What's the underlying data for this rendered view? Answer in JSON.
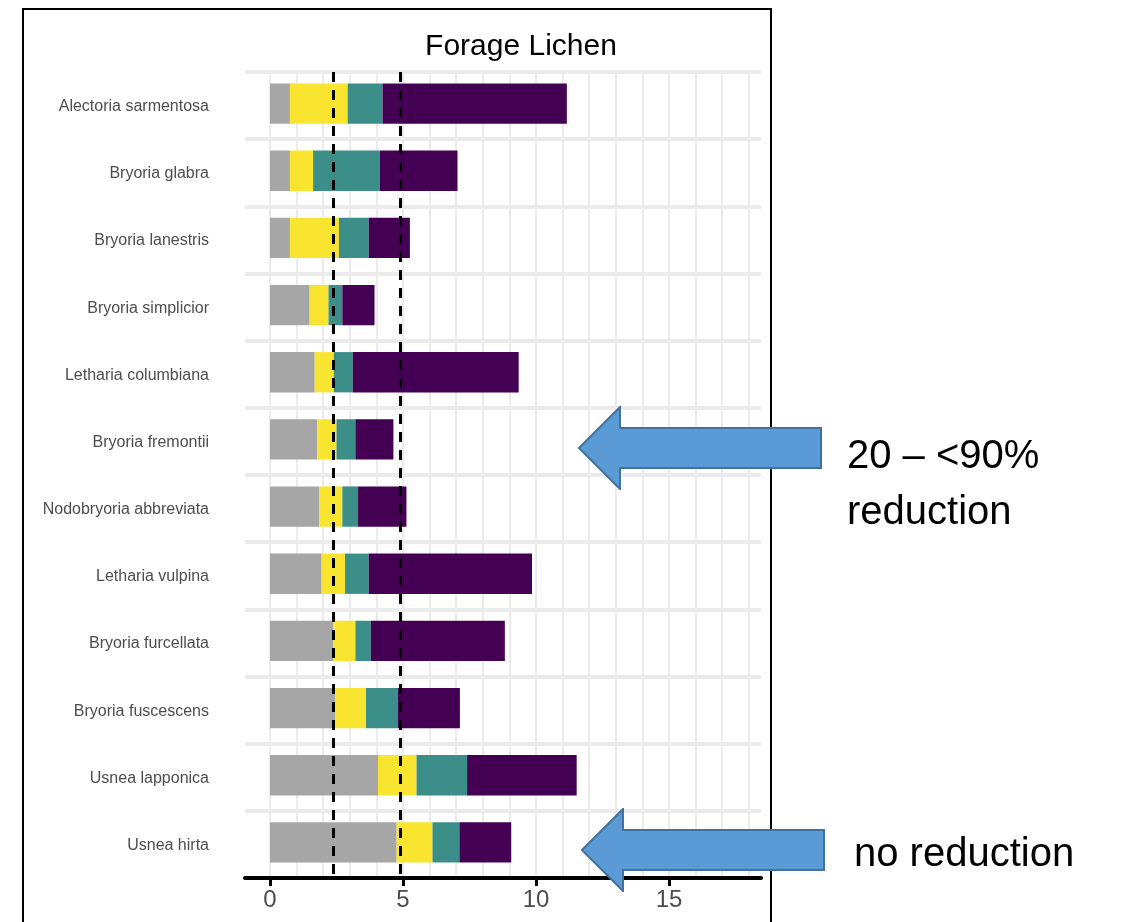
{
  "chart_data": {
    "type": "bar",
    "title": "Forage Lichen",
    "orientation": "horizontal",
    "stacked": true,
    "categories": [
      "Alectoria sarmentosa",
      "Bryoria glabra",
      "Bryoria lanestris",
      "Bryoria simplicior",
      "Letharia columbiana",
      "Bryoria fremontii",
      "Nodobryoria abbreviata",
      "Letharia vulpina",
      "Bryoria furcellata",
      "Bryoria fuscescens",
      "Usnea lapponica",
      "Usnea hirta"
    ],
    "series": [
      {
        "color": "#a6a6a6",
        "values": [
          0.75,
          0.75,
          0.75,
          1.49,
          1.68,
          1.78,
          1.85,
          1.94,
          2.38,
          2.46,
          4.06,
          4.76
        ]
      },
      {
        "color": "#f9e52f",
        "values": [
          2.17,
          0.87,
          1.84,
          0.71,
          0.72,
          0.72,
          0.87,
          0.88,
          0.83,
          1.15,
          1.45,
          1.35
        ]
      },
      {
        "color": "#3b8f88",
        "values": [
          1.31,
          2.51,
          1.12,
          0.52,
          0.71,
          0.71,
          0.59,
          0.89,
          0.58,
          1.19,
          1.9,
          1.01
        ]
      },
      {
        "color": "#440154",
        "values": [
          6.93,
          2.92,
          1.55,
          1.21,
          6.24,
          1.43,
          1.82,
          6.14,
          5.04,
          2.34,
          4.12,
          1.95
        ]
      }
    ],
    "xlim": [
      -0.94,
      18.46
    ],
    "xticks": [
      0,
      {
        "value": 1,
        "label": null
      },
      {
        "value": 2,
        "label": null
      },
      {
        "value": 3,
        "label": null
      },
      {
        "value": 4,
        "label": null
      },
      5,
      {
        "value": 6,
        "label": null
      },
      {
        "value": 7,
        "label": null
      },
      {
        "value": 8,
        "label": null
      },
      {
        "value": 9,
        "label": null
      },
      10,
      {
        "value": 11,
        "label": null
      },
      {
        "value": 12,
        "label": null
      },
      {
        "value": 13,
        "label": null
      },
      {
        "value": 14,
        "label": null
      },
      15,
      {
        "value": 16,
        "label": null
      },
      {
        "value": 17,
        "label": null
      },
      {
        "value": 18,
        "label": null
      }
    ],
    "grid": true,
    "ref_lines": [
      {
        "axis": "x",
        "value": 2.37,
        "color": "#000000",
        "line_style": "dashed"
      },
      {
        "axis": "x",
        "value": 4.91,
        "color": "#000000",
        "line_style": "dashed"
      }
    ],
    "annotations": [
      "20 – <90% reduction",
      "no reduction"
    ]
  }
}
